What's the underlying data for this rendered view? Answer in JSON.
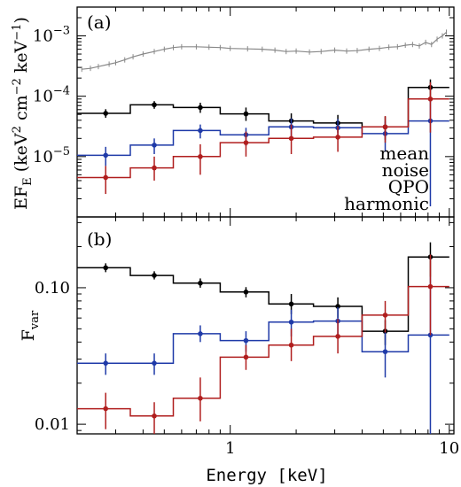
{
  "chart_data": [
    {
      "type": "line",
      "panel_label": "(a)",
      "xlabel": "",
      "ylabel": "EF_E (keV^2 cm^-2 keV^-1)",
      "ylabel_parts": {
        "main": "EF",
        "sub": "E",
        "unit": "(keV",
        "exp1": "2",
        "mid": " cm",
        "exp2": "−2",
        "mid2": " keV",
        "exp3": "−1",
        "close": ")"
      },
      "xscale": "log",
      "yscale": "log",
      "xlim": [
        0.2,
        10.5
      ],
      "ylim": [
        1e-06,
        0.003
      ],
      "y_ticks": [
        {
          "value": 1e-05,
          "label_base": "10",
          "label_exp": "−5"
        },
        {
          "value": 0.0001,
          "label_base": "10",
          "label_exp": "−4"
        },
        {
          "value": 0.001,
          "label_base": "10",
          "label_exp": "−3"
        }
      ],
      "legend": {
        "placement": "bottom-right",
        "entries": [
          "mean",
          "noise",
          "QPO",
          "harmonic"
        ]
      },
      "bin_edges": [
        0.2,
        0.35,
        0.55,
        0.9,
        1.5,
        2.4,
        4.0,
        6.5,
        10.0
      ],
      "series": [
        {
          "name": "mean",
          "color": "#888888",
          "style": "points",
          "x": [
            0.21,
            0.23,
            0.25,
            0.28,
            0.3,
            0.33,
            0.36,
            0.4,
            0.45,
            0.5,
            0.55,
            0.6,
            0.7,
            0.8,
            0.9,
            1.0,
            1.2,
            1.4,
            1.6,
            1.8,
            2.0,
            2.3,
            2.6,
            3.0,
            3.4,
            3.8,
            4.3,
            4.8,
            5.3,
            5.8,
            6.3,
            6.8,
            7.3,
            7.8,
            8.3,
            8.8,
            9.3,
            9.7
          ],
          "values": [
            0.00028,
            0.00029,
            0.00031,
            0.00034,
            0.00036,
            0.0004,
            0.00045,
            0.0005,
            0.00055,
            0.0006,
            0.00064,
            0.00066,
            0.00066,
            0.00065,
            0.00064,
            0.00062,
            0.00061,
            0.0006,
            0.00058,
            0.00055,
            0.00056,
            0.00054,
            0.00055,
            0.00058,
            0.00056,
            0.00057,
            0.0006,
            0.00062,
            0.00065,
            0.00066,
            0.0007,
            0.00072,
            0.00068,
            0.00078,
            0.00072,
            0.00088,
            0.001,
            0.00115
          ]
        },
        {
          "name": "noise",
          "color": "#000000",
          "style": "step",
          "x": [
            0.27,
            0.45,
            0.73,
            1.18,
            1.9,
            3.1,
            5.1,
            8.2
          ],
          "values": [
            5.2e-05,
            7.2e-05,
            6.5e-05,
            5.1e-05,
            3.9e-05,
            3.6e-05,
            3.1e-05,
            0.00014
          ],
          "err_lo": [
            4.4e-05,
            6.2e-05,
            5.3e-05,
            3.9e-05,
            2.9e-05,
            2.5e-05,
            1.9e-05,
            8e-05
          ],
          "err_hi": [
            6.1e-05,
            8.3e-05,
            7.8e-05,
            6.5e-05,
            5.2e-05,
            4.9e-05,
            4.6e-05,
            0.00019
          ]
        },
        {
          "name": "QPO",
          "color": "#1f3aa8",
          "style": "step",
          "x": [
            0.27,
            0.45,
            0.73,
            1.18,
            1.9,
            3.1,
            5.1,
            8.2
          ],
          "values": [
            1.05e-05,
            1.55e-05,
            2.7e-05,
            2.3e-05,
            3.1e-05,
            3e-05,
            2.4e-05,
            3.9e-05
          ],
          "err_lo": [
            7e-06,
            1.1e-05,
            2e-05,
            1.5e-05,
            2e-05,
            1.9e-05,
            1.2e-05,
            1.5e-06
          ],
          "err_hi": [
            1.45e-05,
            2e-05,
            3.4e-05,
            3e-05,
            4.3e-05,
            4.2e-05,
            3.8e-05,
            9e-05
          ]
        },
        {
          "name": "harmonic",
          "color": "#b01e1e",
          "style": "step",
          "x": [
            0.27,
            0.45,
            0.73,
            1.18,
            1.9,
            3.1,
            5.1,
            8.2
          ],
          "values": [
            4.5e-06,
            6.5e-06,
            1e-05,
            1.7e-05,
            2e-05,
            2.1e-05,
            3.1e-05,
            9e-05
          ],
          "err_lo": [
            2.4e-06,
            4e-06,
            5e-06,
            1e-05,
            1.1e-05,
            1.2e-05,
            1.7e-05,
            2.5e-05
          ],
          "err_hi": [
            7e-06,
            1e-05,
            1.6e-05,
            2.6e-05,
            3.4e-05,
            3.2e-05,
            4.7e-05,
            0.00017
          ]
        }
      ]
    },
    {
      "type": "line",
      "panel_label": "(b)",
      "xlabel": "Energy [keV]",
      "ylabel": "F_var",
      "ylabel_parts": {
        "main": "F",
        "sub": "var"
      },
      "xscale": "log",
      "yscale": "log",
      "xlim": [
        0.2,
        10.5
      ],
      "ylim": [
        0.0085,
        0.33
      ],
      "x_ticks": [
        {
          "value": 1,
          "label": "1"
        },
        {
          "value": 10,
          "label": "10"
        }
      ],
      "y_ticks": [
        {
          "value": 0.01,
          "label": "0.01"
        },
        {
          "value": 0.1,
          "label": "0.10"
        }
      ],
      "bin_edges": [
        0.2,
        0.35,
        0.55,
        0.9,
        1.5,
        2.4,
        4.0,
        6.5,
        10.0
      ],
      "series": [
        {
          "name": "noise",
          "color": "#000000",
          "style": "step",
          "x": [
            0.27,
            0.45,
            0.73,
            1.18,
            1.9,
            3.1,
            5.1,
            8.2
          ],
          "values": [
            0.14,
            0.123,
            0.108,
            0.093,
            0.076,
            0.073,
            0.048,
            0.168
          ],
          "err_lo": [
            0.13,
            0.115,
            0.1,
            0.085,
            0.064,
            0.06,
            0.038,
            0.12
          ],
          "err_hi": [
            0.151,
            0.132,
            0.117,
            0.101,
            0.09,
            0.085,
            0.058,
            0.215
          ]
        },
        {
          "name": "QPO",
          "color": "#1f3aa8",
          "style": "step",
          "x": [
            0.27,
            0.45,
            0.73,
            1.18,
            1.9,
            3.1,
            5.1,
            8.2
          ],
          "values": [
            0.028,
            0.028,
            0.046,
            0.041,
            0.056,
            0.057,
            0.034,
            0.045
          ],
          "err_lo": [
            0.023,
            0.023,
            0.04,
            0.034,
            0.044,
            0.043,
            0.022,
            0.0085
          ],
          "err_hi": [
            0.033,
            0.033,
            0.053,
            0.048,
            0.069,
            0.072,
            0.047,
            0.12
          ]
        },
        {
          "name": "harmonic",
          "color": "#b01e1e",
          "style": "step",
          "x": [
            0.27,
            0.45,
            0.73,
            1.18,
            1.9,
            3.1,
            5.1,
            8.2
          ],
          "values": [
            0.013,
            0.0115,
            0.0155,
            0.031,
            0.038,
            0.044,
            0.063,
            0.102
          ],
          "err_lo": [
            0.0092,
            0.0085,
            0.0105,
            0.025,
            0.029,
            0.033,
            0.047,
            0.045
          ],
          "err_hi": [
            0.017,
            0.0145,
            0.022,
            0.038,
            0.05,
            0.059,
            0.08,
            0.175
          ]
        }
      ]
    }
  ]
}
